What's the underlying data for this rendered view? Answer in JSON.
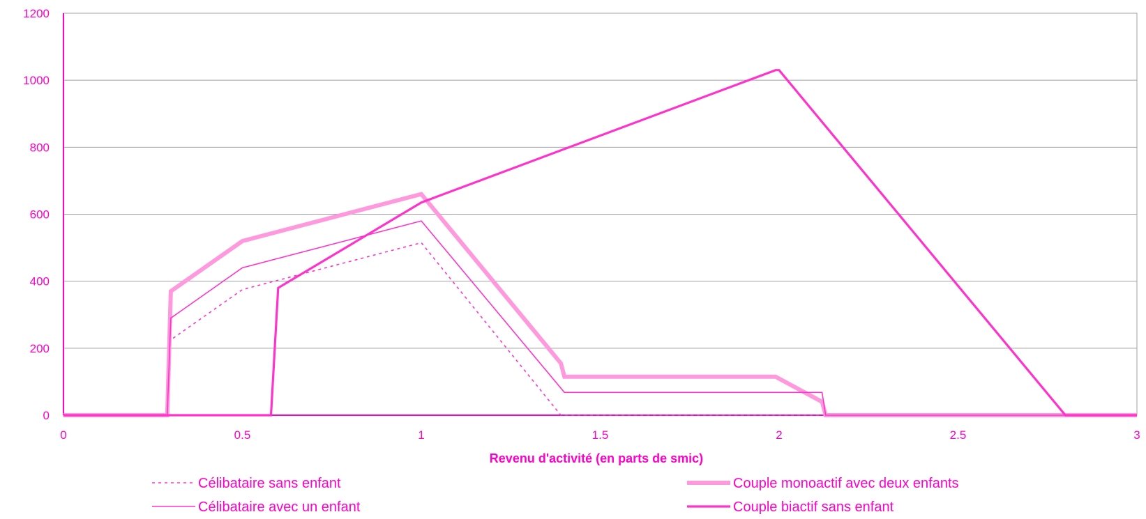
{
  "chart_data": {
    "type": "line",
    "xlabel": "Revenu d'activité (en parts de smic)",
    "ylabel": "",
    "xlim": [
      0,
      3
    ],
    "ylim": [
      0,
      1200
    ],
    "x_ticks": [
      "0",
      "0.5",
      "1",
      "1.5",
      "2",
      "2.5",
      "3"
    ],
    "y_ticks": [
      "0",
      "200",
      "400",
      "600",
      "800",
      "1000",
      "1200"
    ],
    "grid": "horizontal",
    "legend_position": "bottom",
    "colors": {
      "series": "#ff33cc",
      "thick_series": "#ff99dd",
      "axis": "#ff00cc",
      "grid": "#a0a0a0"
    },
    "series": [
      {
        "name": "Célibataire sans enfant",
        "style": "dotted",
        "points": [
          [
            0,
            0
          ],
          [
            0.29,
            0
          ],
          [
            0.3,
            225
          ],
          [
            0.5,
            375
          ],
          [
            1.0,
            515
          ],
          [
            1.39,
            0
          ],
          [
            3,
            0
          ]
        ]
      },
      {
        "name": "Couple monoactif avec deux enfants",
        "style": "thick-textured",
        "points": [
          [
            0,
            0
          ],
          [
            0.29,
            0
          ],
          [
            0.3,
            370
          ],
          [
            0.5,
            520
          ],
          [
            1.0,
            660
          ],
          [
            1.39,
            155
          ],
          [
            1.4,
            115
          ],
          [
            1.99,
            115
          ],
          [
            2.12,
            40
          ],
          [
            2.13,
            0
          ],
          [
            3,
            0
          ]
        ]
      },
      {
        "name": "Célibataire avec un enfant",
        "style": "thin",
        "points": [
          [
            0,
            0
          ],
          [
            0.29,
            0
          ],
          [
            0.3,
            290
          ],
          [
            0.5,
            440
          ],
          [
            1.0,
            580
          ],
          [
            1.4,
            68
          ],
          [
            2.12,
            68
          ],
          [
            2.13,
            0
          ],
          [
            3,
            0
          ]
        ]
      },
      {
        "name": "Couple biactif sans enfant",
        "style": "bold",
        "points": [
          [
            0,
            0
          ],
          [
            0.58,
            0
          ],
          [
            0.6,
            380
          ],
          [
            1.0,
            635
          ],
          [
            1.99,
            1030
          ],
          [
            2.0,
            1030
          ],
          [
            2.8,
            0
          ],
          [
            3,
            0
          ]
        ]
      }
    ]
  }
}
